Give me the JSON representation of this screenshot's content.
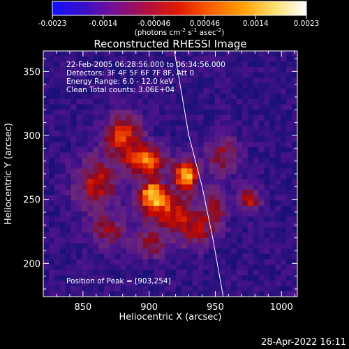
{
  "colorbar": {
    "ticks": [
      "-0.0023",
      "-0.0014",
      "-0.00046",
      "0.00046",
      "0.0014",
      "0.0023"
    ],
    "units_parts": [
      "(photons cm",
      "-2",
      " s",
      "-1",
      " asec",
      "-2",
      ")"
    ],
    "colors": [
      "#1010ff",
      "#3a10c8",
      "#7a1090",
      "#b01040",
      "#e21a00",
      "#ff6000",
      "#ffa000",
      "#ffe070",
      "#ffffff"
    ]
  },
  "chart_data": {
    "type": "heatmap",
    "title": "Reconstructed RHESSI Image",
    "xlabel": "Heliocentric X (arcsec)",
    "ylabel": "Heliocentric Y (arcsec)",
    "xlim": [
      820,
      1012
    ],
    "ylim": [
      174,
      366
    ],
    "xticks": [
      850,
      900,
      950,
      1000
    ],
    "yticks": [
      200,
      250,
      300,
      350
    ],
    "xtick_labels": [
      "850",
      "900",
      "950",
      "1000"
    ],
    "ytick_labels": [
      "200",
      "250",
      "300",
      "350"
    ],
    "peak": [
      903,
      254
    ],
    "source_blobs": [
      {
        "x": 903,
        "y": 254,
        "amp": 1.0,
        "sx": 7,
        "sy": 7
      },
      {
        "x": 928,
        "y": 268,
        "amp": 1.0,
        "sx": 6,
        "sy": 8
      },
      {
        "x": 898,
        "y": 280,
        "amp": 0.8,
        "sx": 11,
        "sy": 8
      },
      {
        "x": 880,
        "y": 300,
        "amp": 0.65,
        "sx": 10,
        "sy": 12
      },
      {
        "x": 915,
        "y": 240,
        "amp": 0.6,
        "sx": 14,
        "sy": 10
      },
      {
        "x": 860,
        "y": 262,
        "amp": 0.55,
        "sx": 12,
        "sy": 14
      },
      {
        "x": 868,
        "y": 225,
        "amp": 0.4,
        "sx": 10,
        "sy": 9
      },
      {
        "x": 975,
        "y": 250,
        "amp": 0.6,
        "sx": 6,
        "sy": 6
      },
      {
        "x": 955,
        "y": 285,
        "amp": 0.4,
        "sx": 9,
        "sy": 11
      },
      {
        "x": 935,
        "y": 225,
        "amp": 0.45,
        "sx": 9,
        "sy": 9
      },
      {
        "x": 900,
        "y": 215,
        "amp": 0.4,
        "sx": 12,
        "sy": 8
      },
      {
        "x": 950,
        "y": 245,
        "amp": 0.45,
        "sx": 6,
        "sy": 12
      }
    ],
    "limb_line": [
      [
        919,
        366
      ],
      [
        930,
        300
      ],
      [
        940,
        260
      ],
      [
        948,
        220
      ],
      [
        956,
        174
      ]
    ]
  },
  "annotations": {
    "line1": "22-Feb-2005 06:28:56.000 to 06:34:56.000",
    "line2": "Detectors: 3F 4F 5F 6F 7F 8F, Att 0",
    "line3": "Energy Range: 6.0 - 12.0 keV",
    "line4": "Clean     Total counts: 3.06E+04",
    "peak_text": "Position of Peak = [903,254]"
  },
  "footer": {
    "date": "28-Apr-2022 16:11"
  }
}
